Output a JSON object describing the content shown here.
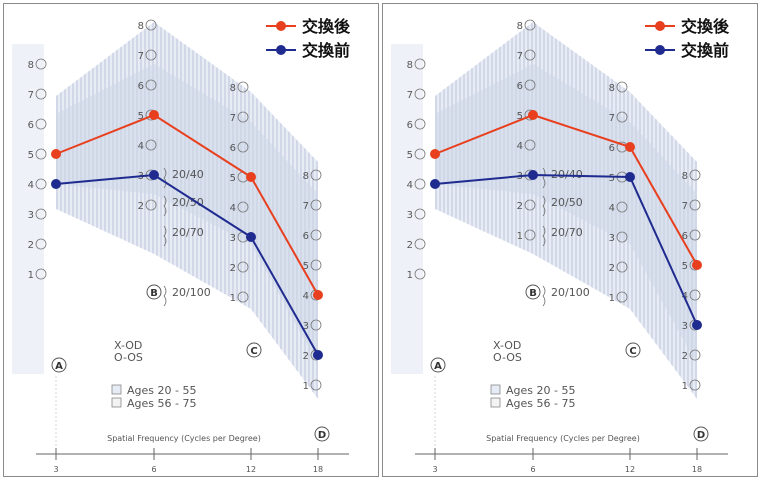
{
  "colors": {
    "after": "#e8401e",
    "before": "#1f2b8f",
    "band": "#cdd7e8",
    "band_hatch": "#9aa8c8",
    "text": "#555555"
  },
  "chart_data": [
    {
      "type": "line",
      "legend_position": "top-right",
      "x": [
        "3",
        "6",
        "12",
        "18"
      ],
      "xlabel": "Spatial Frequency (Cycles per Degree)",
      "column_letters": [
        "A",
        "B",
        "C",
        "D"
      ],
      "column_scales": [
        [
          "1",
          "2",
          "3",
          "4",
          "5",
          "6",
          "7",
          "8"
        ],
        [
          "2",
          "3",
          "4",
          "5",
          "6",
          "7",
          "8"
        ],
        [
          "1",
          "2",
          "3",
          "4",
          "5",
          "6",
          "7",
          "8"
        ],
        [
          "1",
          "2",
          "3",
          "4",
          "5",
          "6",
          "7",
          "8"
        ]
      ],
      "acuity_labels": [
        "20/40",
        "20/50",
        "20/70",
        "20/100"
      ],
      "legend_notes": [
        "X-OD",
        "O-OS"
      ],
      "age_groups": [
        "Ages 20 - 55",
        "Ages 56 - 75"
      ],
      "series": [
        {
          "name": "交換後",
          "values": [
            5,
            5,
            5,
            4
          ]
        },
        {
          "name": "交換前",
          "values": [
            4,
            3,
            3,
            2
          ]
        }
      ]
    },
    {
      "type": "line",
      "legend_position": "top-right",
      "x": [
        "3",
        "6",
        "12",
        "18"
      ],
      "xlabel": "Spatial Frequency (Cycles per Degree)",
      "column_letters": [
        "A",
        "B",
        "C",
        "D"
      ],
      "column_scales": [
        [
          "1",
          "2",
          "3",
          "4",
          "5",
          "6",
          "7",
          "8"
        ],
        [
          "1",
          "2",
          "3",
          "4",
          "5",
          "6",
          "7",
          "8"
        ],
        [
          "1",
          "2",
          "3",
          "4",
          "5",
          "6",
          "7",
          "8"
        ],
        [
          "1",
          "2",
          "3",
          "4",
          "5",
          "6",
          "7",
          "8"
        ]
      ],
      "acuity_labels": [
        "20/40",
        "20/50",
        "20/70",
        "20/100"
      ],
      "legend_notes": [
        "X-OD",
        "O-OS"
      ],
      "age_groups": [
        "Ages 20 - 55",
        "Ages 56 - 75"
      ],
      "series": [
        {
          "name": "交換後",
          "values": [
            5,
            5,
            6,
            5
          ]
        },
        {
          "name": "交換前",
          "values": [
            4,
            3,
            5,
            3
          ]
        }
      ]
    }
  ]
}
